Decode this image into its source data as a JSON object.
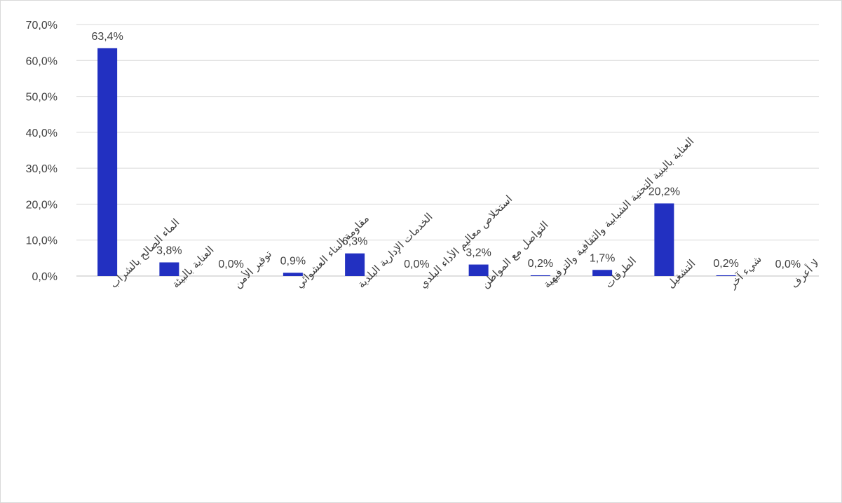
{
  "chart_data": {
    "type": "bar",
    "title": "",
    "xlabel": "",
    "ylabel": "",
    "ylim": [
      0,
      70
    ],
    "y_ticks": [
      "0,0%",
      "10,0%",
      "20,0%",
      "30,0%",
      "40,0%",
      "50,0%",
      "60,0%",
      "70,0%"
    ],
    "y_tick_values": [
      0,
      10,
      20,
      30,
      40,
      50,
      60,
      70
    ],
    "grid": true,
    "bar_color": "#2230C1",
    "categories": [
      "الماء الصالح بالشراب",
      "العناية بالبيئة",
      "توفير الأمن",
      "مقاومة البناء العشوائي",
      "الخدمات الإدارية البلدية",
      "استخلاص معاليم الأداء البلدي",
      "التواصل مع المواطن",
      "العناية بالبنية التحتية الشبابية والثقافية والترفيهية",
      "الطرقات",
      "التشغيل",
      "شيء آخر",
      "لا أعرف"
    ],
    "values": [
      63.4,
      3.8,
      0.0,
      0.9,
      6.3,
      0.0,
      3.2,
      0.2,
      1.7,
      20.2,
      0.2,
      0.0
    ],
    "data_labels": [
      "63,4%",
      "3,8%",
      "0,0%",
      "0,9%",
      "6,3%",
      "0,0%",
      "3,2%",
      "0,2%",
      "1,7%",
      "20,2%",
      "0,2%",
      "0,0%"
    ]
  }
}
